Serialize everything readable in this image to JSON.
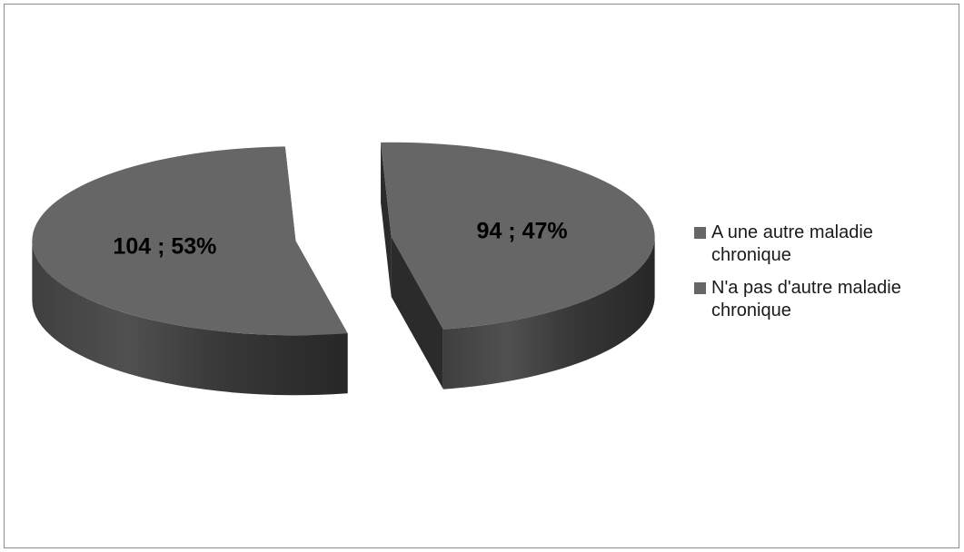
{
  "chart_data": {
    "type": "pie",
    "title": "",
    "three_d": true,
    "exploded": true,
    "legend_position": "right",
    "slices": [
      {
        "label": "A une autre maladie chronique",
        "value": 94,
        "percent": 47,
        "data_label": "94 ; 47%",
        "color": "#666666"
      },
      {
        "label": "N'a pas d'autre maladie chronique",
        "value": 104,
        "percent": 53,
        "data_label": "104 ; 53%",
        "color": "#666666"
      }
    ]
  }
}
